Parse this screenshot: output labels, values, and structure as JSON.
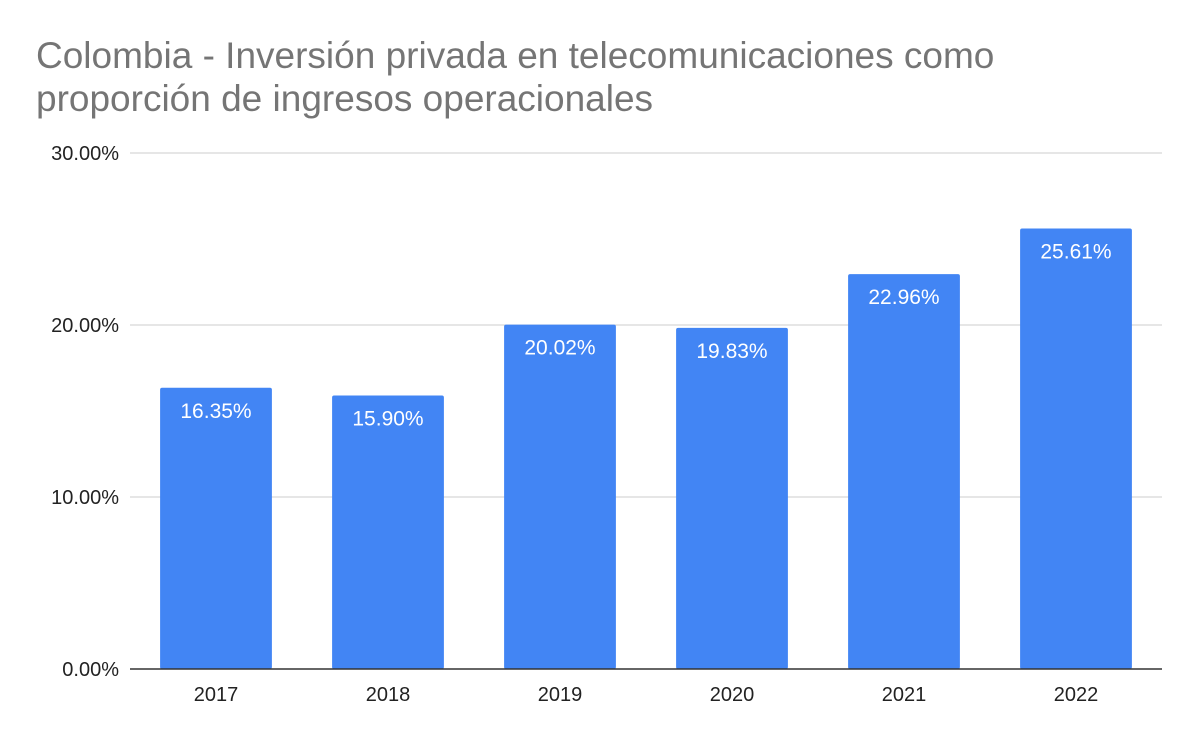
{
  "chart_data": {
    "type": "bar",
    "title": "Colombia - Inversión privada en telecomunicaciones como proporción de ingresos operacionales",
    "xlabel": "",
    "ylabel": "",
    "categories": [
      "2017",
      "2018",
      "2019",
      "2020",
      "2021",
      "2022"
    ],
    "series": [
      {
        "values": [
          16.35,
          15.9,
          20.02,
          19.83,
          22.96,
          25.61
        ],
        "color": "#4285f4",
        "value_labels": [
          "16.35%",
          "15.90%",
          "20.02%",
          "19.83%",
          "22.96%",
          "25.61%"
        ]
      }
    ],
    "ylim": [
      0,
      30
    ],
    "y_ticks": [
      0,
      10,
      20,
      30
    ],
    "y_tick_labels": [
      "0.00%",
      "10.00%",
      "20.00%",
      "30.00%"
    ],
    "grid": true,
    "legend": "none",
    "colors": {
      "title": "#757575",
      "gridline": "#cccccc",
      "axis": "#333333",
      "tick_label": "#222222",
      "value_label": "#ffffff"
    }
  }
}
